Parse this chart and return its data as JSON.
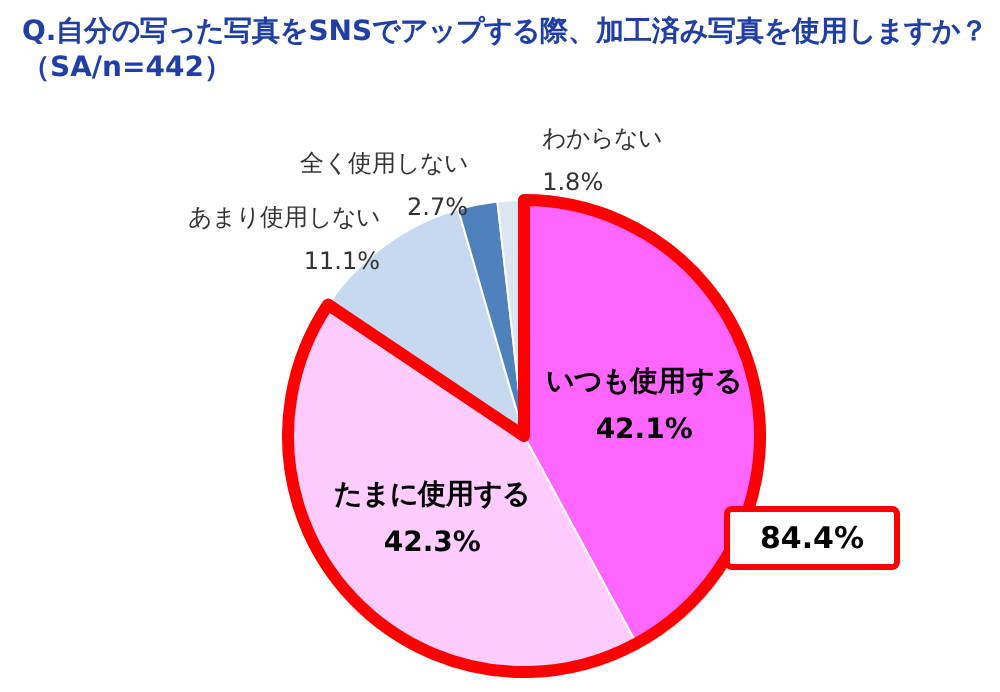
{
  "chart_data": {
    "type": "pie",
    "title": "Q.自分の写った写真をSNSでアップする際、加工済み写真を使用しますか？",
    "subtitle": "（SA/n=442）",
    "categories": [
      "いつも使用する",
      "たまに使用する",
      "あまり使用しない",
      "全く使用しない",
      "わからない"
    ],
    "values": [
      42.1,
      42.3,
      11.1,
      2.7,
      1.8
    ],
    "colors": [
      "#ff66ff",
      "#ffccff",
      "#c6d9f0",
      "#4f81bd",
      "#dce6f2"
    ],
    "value_labels": [
      "42.1%",
      "42.3%",
      "11.1%",
      "2.7%",
      "1.8%"
    ],
    "annotations": [
      "84.4%"
    ],
    "legend": false
  }
}
